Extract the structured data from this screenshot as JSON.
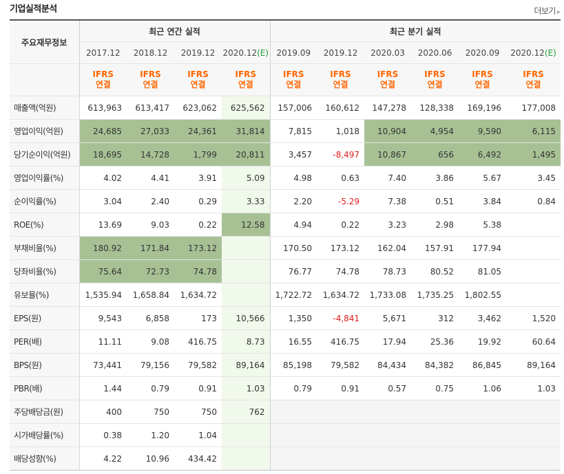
{
  "title": "기업실적분석",
  "more_label": "더보기",
  "header": {
    "row_label": "주요재무정보",
    "annual_label": "최근 연간 실적",
    "quarter_label": "최근 분기 실적",
    "annual_periods": [
      {
        "date": "2017.12",
        "tag": ""
      },
      {
        "date": "2018.12",
        "tag": ""
      },
      {
        "date": "2019.12",
        "tag": ""
      },
      {
        "date": "2020.12",
        "tag": "(E)"
      }
    ],
    "quarter_periods": [
      {
        "date": "2019.09",
        "tag": ""
      },
      {
        "date": "2019.12",
        "tag": ""
      },
      {
        "date": "2020.03",
        "tag": ""
      },
      {
        "date": "2020.06",
        "tag": ""
      },
      {
        "date": "2020.09",
        "tag": ""
      },
      {
        "date": "2020.12",
        "tag": "(E)"
      }
    ],
    "ifrs_line1": "IFRS",
    "ifrs_line2": "연결"
  },
  "rows": [
    {
      "label": "매출액(억원)",
      "group_start": true,
      "annual": [
        "613,963",
        "613,417",
        "623,062",
        "625,562"
      ],
      "quarter": [
        "157,006",
        "160,612",
        "147,278",
        "128,338",
        "169,196",
        "177,008"
      ],
      "hl_annual": [
        0,
        0,
        0,
        0
      ],
      "hl_quarter": [
        0,
        0,
        0,
        0,
        0,
        0
      ],
      "neg": []
    },
    {
      "label": "영업이익(억원)",
      "annual": [
        "24,685",
        "27,033",
        "24,361",
        "31,814"
      ],
      "quarter": [
        "7,815",
        "1,018",
        "10,904",
        "4,954",
        "9,590",
        "6,115"
      ],
      "hl_annual": [
        1,
        1,
        1,
        1
      ],
      "hl_quarter": [
        0,
        0,
        1,
        1,
        1,
        1
      ],
      "neg": []
    },
    {
      "label": "당기순이익(억원)",
      "annual": [
        "18,695",
        "14,728",
        "1,799",
        "20,811"
      ],
      "quarter": [
        "3,457",
        "-8,497",
        "10,867",
        "656",
        "6,492",
        "1,495"
      ],
      "hl_annual": [
        1,
        1,
        1,
        1
      ],
      "hl_quarter": [
        0,
        0,
        1,
        1,
        1,
        1
      ],
      "neg": [
        "q1"
      ]
    },
    {
      "label": "영업이익률(%)",
      "group_start": true,
      "annual": [
        "4.02",
        "4.41",
        "3.91",
        "5.09"
      ],
      "quarter": [
        "4.98",
        "0.63",
        "7.40",
        "3.86",
        "5.67",
        "3.45"
      ],
      "hl_annual": [
        0,
        0,
        0,
        0
      ],
      "hl_quarter": [
        0,
        0,
        0,
        0,
        0,
        0
      ],
      "neg": []
    },
    {
      "label": "순이익률(%)",
      "annual": [
        "3.04",
        "2.40",
        "0.29",
        "3.33"
      ],
      "quarter": [
        "2.20",
        "-5.29",
        "7.38",
        "0.51",
        "3.84",
        "0.84"
      ],
      "hl_annual": [
        0,
        0,
        0,
        0
      ],
      "hl_quarter": [
        0,
        0,
        0,
        0,
        0,
        0
      ],
      "neg": [
        "q1"
      ]
    },
    {
      "label": "ROE(%)",
      "annual": [
        "13.69",
        "9.03",
        "0.22",
        "12.58"
      ],
      "quarter": [
        "4.94",
        "0.22",
        "3.23",
        "2.98",
        "5.38",
        ""
      ],
      "hl_annual": [
        0,
        0,
        0,
        1
      ],
      "hl_quarter": [
        0,
        0,
        0,
        0,
        0,
        0
      ],
      "neg": []
    },
    {
      "label": "부채비율(%)",
      "group_start": true,
      "annual": [
        "180.92",
        "171.84",
        "173.12",
        ""
      ],
      "quarter": [
        "170.50",
        "173.12",
        "162.04",
        "157.91",
        "177.94",
        ""
      ],
      "hl_annual": [
        1,
        1,
        1,
        0
      ],
      "hl_quarter": [
        0,
        0,
        0,
        0,
        0,
        0
      ],
      "neg": []
    },
    {
      "label": "당좌비율(%)",
      "annual": [
        "75.64",
        "72.73",
        "74.78",
        ""
      ],
      "quarter": [
        "76.77",
        "74.78",
        "78.73",
        "80.52",
        "81.05",
        ""
      ],
      "hl_annual": [
        1,
        1,
        1,
        0
      ],
      "hl_quarter": [
        0,
        0,
        0,
        0,
        0,
        0
      ],
      "neg": []
    },
    {
      "label": "유보율(%)",
      "annual": [
        "1,535.94",
        "1,658.84",
        "1,634.72",
        ""
      ],
      "quarter": [
        "1,722.72",
        "1,634.72",
        "1,733.08",
        "1,735.25",
        "1,802.55",
        ""
      ],
      "hl_annual": [
        0,
        0,
        0,
        0
      ],
      "hl_quarter": [
        0,
        0,
        0,
        0,
        0,
        0
      ],
      "neg": []
    },
    {
      "label": "EPS(원)",
      "group_start": true,
      "annual": [
        "9,543",
        "6,858",
        "173",
        "10,566"
      ],
      "quarter": [
        "1,350",
        "-4,841",
        "5,671",
        "312",
        "3,462",
        "1,520"
      ],
      "hl_annual": [
        0,
        0,
        0,
        0
      ],
      "hl_quarter": [
        0,
        0,
        0,
        0,
        0,
        0
      ],
      "neg": [
        "q1"
      ]
    },
    {
      "label": "PER(배)",
      "annual": [
        "11.11",
        "9.08",
        "416.75",
        "8.73"
      ],
      "quarter": [
        "16.55",
        "416.75",
        "17.94",
        "25.36",
        "19.92",
        "60.64"
      ],
      "hl_annual": [
        0,
        0,
        0,
        0
      ],
      "hl_quarter": [
        0,
        0,
        0,
        0,
        0,
        0
      ],
      "neg": []
    },
    {
      "label": "BPS(원)",
      "annual": [
        "73,441",
        "79,156",
        "79,582",
        "89,164"
      ],
      "quarter": [
        "85,198",
        "79,582",
        "84,434",
        "84,382",
        "86,845",
        "89,164"
      ],
      "hl_annual": [
        0,
        0,
        0,
        0
      ],
      "hl_quarter": [
        0,
        0,
        0,
        0,
        0,
        0
      ],
      "neg": []
    },
    {
      "label": "PBR(배)",
      "annual": [
        "1.44",
        "0.79",
        "0.91",
        "1.03"
      ],
      "quarter": [
        "0.79",
        "0.91",
        "0.57",
        "0.75",
        "1.06",
        "1.03"
      ],
      "hl_annual": [
        0,
        0,
        0,
        0
      ],
      "hl_quarter": [
        0,
        0,
        0,
        0,
        0,
        0
      ],
      "neg": []
    },
    {
      "label": "주당배당금(원)",
      "group_start": true,
      "annual": [
        "400",
        "750",
        "750",
        "762"
      ],
      "quarter": [
        "",
        "",
        "",
        "",
        "",
        ""
      ],
      "hl_annual": [
        0,
        0,
        0,
        0
      ],
      "hl_quarter": [
        0,
        0,
        0,
        0,
        0,
        0
      ],
      "neg": [],
      "quarter_empty": true
    },
    {
      "label": "시가배당률(%)",
      "annual": [
        "0.38",
        "1.20",
        "1.04",
        ""
      ],
      "quarter": [
        "",
        "",
        "",
        "",
        "",
        ""
      ],
      "hl_annual": [
        0,
        0,
        0,
        0
      ],
      "hl_quarter": [
        0,
        0,
        0,
        0,
        0,
        0
      ],
      "neg": [],
      "quarter_empty": true
    },
    {
      "label": "배당성향(%)",
      "annual": [
        "4.22",
        "10.96",
        "434.42",
        ""
      ],
      "quarter": [
        "",
        "",
        "",
        "",
        "",
        ""
      ],
      "hl_annual": [
        0,
        0,
        0,
        0
      ],
      "hl_quarter": [
        0,
        0,
        0,
        0,
        0,
        0
      ],
      "neg": [],
      "quarter_empty": true
    }
  ]
}
